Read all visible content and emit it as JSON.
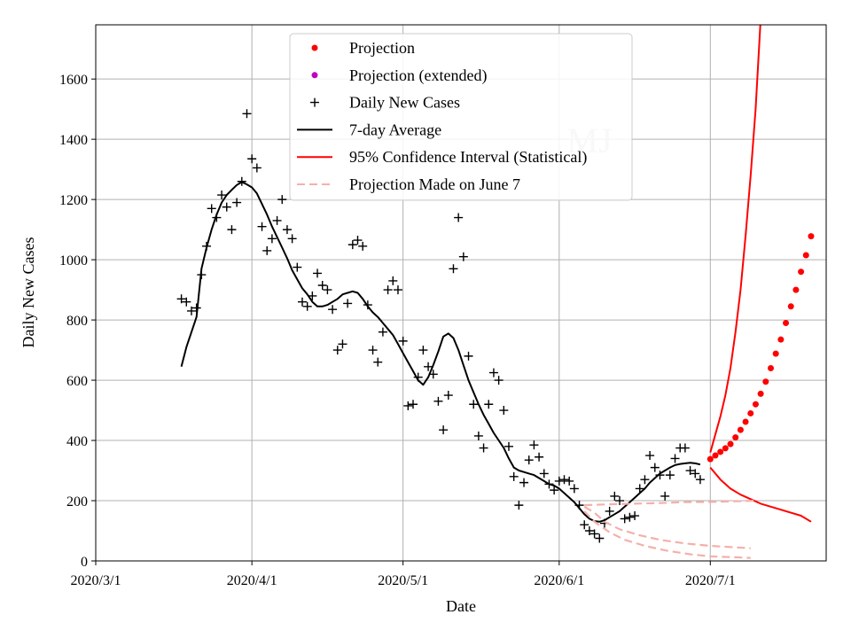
{
  "chart_data": {
    "type": "scatter",
    "title": "",
    "xlabel": "Date",
    "ylabel": "Daily New Cases",
    "watermark": "MJ",
    "x_units": "days since 2020-03-01",
    "xlim": [
      0,
      145
    ],
    "ylim": [
      0,
      1780
    ],
    "grid": true,
    "legend_position": "top-center",
    "x_ticks": [
      {
        "value": 0,
        "label": "2020/3/1"
      },
      {
        "value": 31,
        "label": "2020/4/1"
      },
      {
        "value": 61,
        "label": "2020/5/1"
      },
      {
        "value": 92,
        "label": "2020/6/1"
      },
      {
        "value": 122,
        "label": "2020/7/1"
      }
    ],
    "y_ticks": [
      0,
      200,
      400,
      600,
      800,
      1000,
      1200,
      1400,
      1600
    ],
    "legend": [
      {
        "label": "Projection",
        "style": "dot",
        "color": "#ff0000"
      },
      {
        "label": "Projection (extended)",
        "style": "dot",
        "color": "#bf00bf"
      },
      {
        "label": "Daily New Cases",
        "style": "plus",
        "color": "#000000"
      },
      {
        "label": "7-day Average",
        "style": "line",
        "color": "#000000"
      },
      {
        "label": "95% Confidence Interval (Statistical)",
        "style": "line",
        "color": "#ff0000"
      },
      {
        "label": "Projection Made on June 7",
        "style": "dashed",
        "color": "#f4b0aa"
      }
    ],
    "series": [
      {
        "name": "Daily New Cases",
        "style": "plus",
        "color": "#000000",
        "points": [
          [
            17,
            870
          ],
          [
            18,
            860
          ],
          [
            19,
            830
          ],
          [
            20,
            840
          ],
          [
            21,
            950
          ],
          [
            22,
            1045
          ],
          [
            23,
            1170
          ],
          [
            24,
            1140
          ],
          [
            25,
            1215
          ],
          [
            26,
            1175
          ],
          [
            27,
            1100
          ],
          [
            28,
            1190
          ],
          [
            29,
            1260
          ],
          [
            30,
            1485
          ],
          [
            31,
            1335
          ],
          [
            32,
            1305
          ],
          [
            33,
            1110
          ],
          [
            34,
            1030
          ],
          [
            35,
            1070
          ],
          [
            36,
            1130
          ],
          [
            37,
            1200
          ],
          [
            38,
            1100
          ],
          [
            39,
            1070
          ],
          [
            40,
            975
          ],
          [
            41,
            860
          ],
          [
            42,
            845
          ],
          [
            43,
            880
          ],
          [
            44,
            955
          ],
          [
            45,
            915
          ],
          [
            46,
            900
          ],
          [
            47,
            835
          ],
          [
            48,
            700
          ],
          [
            49,
            720
          ],
          [
            50,
            855
          ],
          [
            51,
            1050
          ],
          [
            52,
            1065
          ],
          [
            53,
            1045
          ],
          [
            54,
            850
          ],
          [
            55,
            700
          ],
          [
            56,
            660
          ],
          [
            57,
            760
          ],
          [
            58,
            900
          ],
          [
            59,
            930
          ],
          [
            60,
            900
          ],
          [
            61,
            730
          ],
          [
            62,
            515
          ],
          [
            63,
            520
          ],
          [
            64,
            610
          ],
          [
            65,
            700
          ],
          [
            66,
            645
          ],
          [
            67,
            620
          ],
          [
            68,
            530
          ],
          [
            69,
            435
          ],
          [
            70,
            550
          ],
          [
            71,
            970
          ],
          [
            72,
            1140
          ],
          [
            73,
            1010
          ],
          [
            74,
            680
          ],
          [
            75,
            520
          ],
          [
            76,
            415
          ],
          [
            77,
            375
          ],
          [
            78,
            520
          ],
          [
            79,
            625
          ],
          [
            80,
            600
          ],
          [
            81,
            500
          ],
          [
            82,
            380
          ],
          [
            83,
            280
          ],
          [
            84,
            185
          ],
          [
            85,
            260
          ],
          [
            86,
            335
          ],
          [
            87,
            385
          ],
          [
            88,
            345
          ],
          [
            89,
            290
          ],
          [
            90,
            255
          ],
          [
            91,
            235
          ],
          [
            92,
            265
          ],
          [
            93,
            270
          ],
          [
            94,
            265
          ],
          [
            95,
            240
          ],
          [
            96,
            185
          ],
          [
            97,
            120
          ],
          [
            98,
            100
          ],
          [
            99,
            90
          ],
          [
            100,
            75
          ],
          [
            101,
            125
          ],
          [
            102,
            165
          ],
          [
            103,
            215
          ],
          [
            104,
            200
          ],
          [
            105,
            140
          ],
          [
            106,
            145
          ],
          [
            107,
            150
          ],
          [
            108,
            240
          ],
          [
            109,
            270
          ],
          [
            110,
            350
          ],
          [
            111,
            310
          ],
          [
            112,
            285
          ],
          [
            113,
            215
          ],
          [
            114,
            285
          ],
          [
            115,
            340
          ],
          [
            116,
            375
          ],
          [
            117,
            375
          ],
          [
            118,
            300
          ],
          [
            119,
            290
          ],
          [
            120,
            270
          ]
        ]
      },
      {
        "name": "7-day Average",
        "style": "line",
        "color": "#000000",
        "points": [
          [
            17,
            645
          ],
          [
            18,
            710
          ],
          [
            19,
            760
          ],
          [
            20,
            810
          ],
          [
            21,
            970
          ],
          [
            22,
            1040
          ],
          [
            23,
            1100
          ],
          [
            24,
            1150
          ],
          [
            25,
            1190
          ],
          [
            26,
            1215
          ],
          [
            27,
            1232
          ],
          [
            28,
            1248
          ],
          [
            29,
            1258
          ],
          [
            30,
            1250
          ],
          [
            31,
            1240
          ],
          [
            32,
            1220
          ],
          [
            33,
            1185
          ],
          [
            34,
            1150
          ],
          [
            35,
            1110
          ],
          [
            36,
            1075
          ],
          [
            37,
            1040
          ],
          [
            38,
            1005
          ],
          [
            39,
            965
          ],
          [
            40,
            935
          ],
          [
            41,
            905
          ],
          [
            42,
            885
          ],
          [
            43,
            860
          ],
          [
            44,
            845
          ],
          [
            45,
            845
          ],
          [
            46,
            850
          ],
          [
            47,
            860
          ],
          [
            48,
            870
          ],
          [
            49,
            885
          ],
          [
            50,
            890
          ],
          [
            51,
            895
          ],
          [
            52,
            890
          ],
          [
            53,
            870
          ],
          [
            54,
            845
          ],
          [
            55,
            825
          ],
          [
            56,
            810
          ],
          [
            57,
            790
          ],
          [
            58,
            770
          ],
          [
            59,
            750
          ],
          [
            60,
            720
          ],
          [
            61,
            690
          ],
          [
            62,
            660
          ],
          [
            63,
            630
          ],
          [
            64,
            600
          ],
          [
            65,
            585
          ],
          [
            66,
            610
          ],
          [
            67,
            650
          ],
          [
            68,
            695
          ],
          [
            69,
            745
          ],
          [
            70,
            755
          ],
          [
            71,
            740
          ],
          [
            72,
            700
          ],
          [
            73,
            650
          ],
          [
            74,
            600
          ],
          [
            75,
            560
          ],
          [
            76,
            520
          ],
          [
            77,
            485
          ],
          [
            78,
            455
          ],
          [
            79,
            425
          ],
          [
            80,
            400
          ],
          [
            81,
            375
          ],
          [
            82,
            340
          ],
          [
            83,
            310
          ],
          [
            84,
            300
          ],
          [
            85,
            295
          ],
          [
            86,
            290
          ],
          [
            87,
            285
          ],
          [
            88,
            275
          ],
          [
            89,
            265
          ],
          [
            90,
            255
          ],
          [
            91,
            250
          ],
          [
            92,
            240
          ],
          [
            93,
            225
          ],
          [
            94,
            210
          ],
          [
            95,
            195
          ],
          [
            96,
            175
          ],
          [
            97,
            155
          ],
          [
            98,
            140
          ],
          [
            99,
            132
          ],
          [
            100,
            130
          ],
          [
            101,
            135
          ],
          [
            102,
            145
          ],
          [
            103,
            155
          ],
          [
            104,
            165
          ],
          [
            105,
            180
          ],
          [
            106,
            195
          ],
          [
            107,
            210
          ],
          [
            108,
            225
          ],
          [
            109,
            240
          ],
          [
            110,
            260
          ],
          [
            111,
            275
          ],
          [
            112,
            290
          ],
          [
            113,
            300
          ],
          [
            114,
            310
          ],
          [
            115,
            318
          ],
          [
            116,
            322
          ],
          [
            117,
            324
          ],
          [
            118,
            326
          ],
          [
            119,
            324
          ],
          [
            120,
            320
          ]
        ]
      },
      {
        "name": "Projection",
        "style": "dot",
        "color": "#ff0000",
        "points": [
          [
            122,
            338
          ],
          [
            123,
            350
          ],
          [
            124,
            362
          ],
          [
            125,
            374
          ],
          [
            126,
            388
          ],
          [
            127,
            410
          ],
          [
            128,
            435
          ],
          [
            129,
            462
          ],
          [
            130,
            490
          ],
          [
            131,
            520
          ],
          [
            132,
            555
          ],
          [
            133,
            595
          ],
          [
            134,
            640
          ],
          [
            135,
            688
          ],
          [
            136,
            735
          ],
          [
            137,
            790
          ],
          [
            138,
            845
          ],
          [
            139,
            900
          ],
          [
            140,
            960
          ],
          [
            141,
            1015
          ],
          [
            142,
            1078
          ]
        ]
      },
      {
        "name": "95% CI upper",
        "style": "line",
        "color": "#ff0000",
        "points": [
          [
            122,
            360
          ],
          [
            123,
            420
          ],
          [
            124,
            480
          ],
          [
            125,
            550
          ],
          [
            126,
            640
          ],
          [
            127,
            760
          ],
          [
            128,
            900
          ],
          [
            129,
            1080
          ],
          [
            130,
            1280
          ],
          [
            131,
            1500
          ],
          [
            132,
            1800
          ]
        ]
      },
      {
        "name": "95% CI lower",
        "style": "line",
        "color": "#ff0000",
        "points": [
          [
            122,
            310
          ],
          [
            124,
            270
          ],
          [
            126,
            240
          ],
          [
            128,
            220
          ],
          [
            130,
            205
          ],
          [
            132,
            190
          ],
          [
            134,
            180
          ],
          [
            136,
            170
          ],
          [
            138,
            160
          ],
          [
            140,
            150
          ],
          [
            142,
            130
          ]
        ]
      },
      {
        "name": "Projection Made on June 7 upper",
        "style": "dashed",
        "color": "#f4b0aa",
        "points": [
          [
            97,
            185
          ],
          [
            102,
            188
          ],
          [
            107,
            190
          ],
          [
            112,
            192
          ],
          [
            117,
            195
          ],
          [
            122,
            196
          ],
          [
            127,
            198
          ],
          [
            131,
            200
          ]
        ]
      },
      {
        "name": "Projection Made on June 7 mid",
        "style": "dashed",
        "color": "#f4b0aa",
        "points": [
          [
            97,
            180
          ],
          [
            99,
            160
          ],
          [
            101,
            130
          ],
          [
            104,
            105
          ],
          [
            108,
            85
          ],
          [
            112,
            70
          ],
          [
            117,
            58
          ],
          [
            122,
            50
          ],
          [
            127,
            45
          ],
          [
            130,
            42
          ]
        ]
      },
      {
        "name": "Projection Made on June 7 lower",
        "style": "dashed",
        "color": "#f4b0aa",
        "points": [
          [
            97,
            165
          ],
          [
            99,
            130
          ],
          [
            102,
            95
          ],
          [
            105,
            70
          ],
          [
            109,
            50
          ],
          [
            113,
            35
          ],
          [
            118,
            22
          ],
          [
            122,
            15
          ],
          [
            127,
            12
          ],
          [
            130,
            10
          ]
        ]
      }
    ]
  }
}
